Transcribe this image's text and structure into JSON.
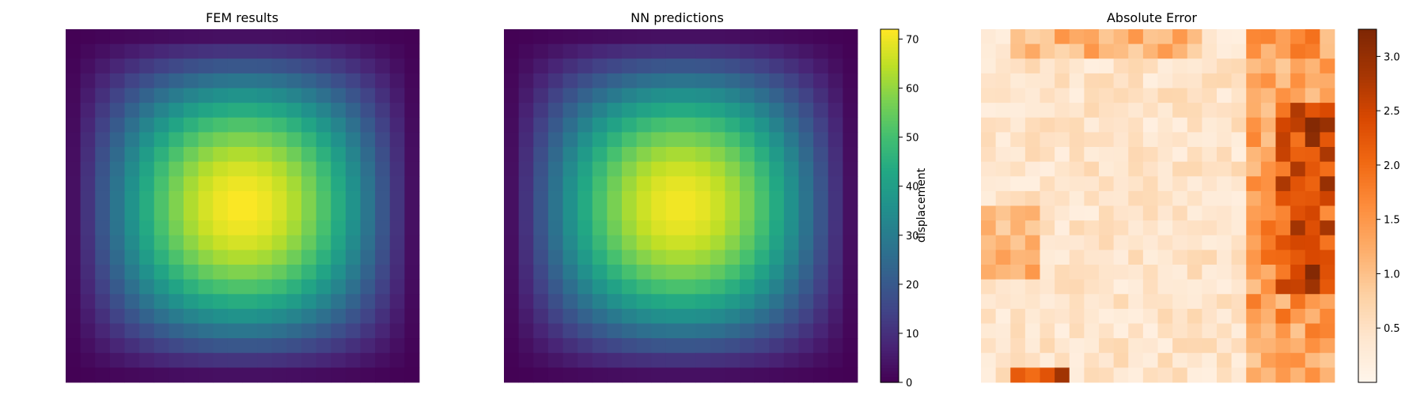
{
  "chart_data": [
    {
      "type": "heatmap",
      "title": "FEM results",
      "grid_size": [
        24,
        24
      ],
      "colormap": "viridis",
      "value_range": [
        0,
        72
      ],
      "field": "displacement",
      "peak": {
        "value": 72,
        "row": 12,
        "col": 12
      },
      "axes_visible": false
    },
    {
      "type": "heatmap",
      "title": "NN predictions",
      "grid_size": [
        24,
        24
      ],
      "colormap": "viridis",
      "value_range": [
        0,
        72
      ],
      "field": "displacement",
      "peak": {
        "value": 71,
        "row": 12,
        "col": 12
      },
      "axes_visible": false,
      "colorbar": {
        "label": "displacement",
        "ticks": [
          0,
          10,
          20,
          30,
          40,
          50,
          60,
          70
        ],
        "range": [
          0,
          72
        ]
      }
    },
    {
      "type": "heatmap",
      "title": "Absolute Error",
      "grid_size": [
        24,
        24
      ],
      "colormap": "Oranges",
      "value_range": [
        0,
        3.25
      ],
      "axes_visible": false,
      "colorbar": {
        "label": "",
        "ticks": [
          0.5,
          1.0,
          1.5,
          2.0,
          2.5,
          3.0
        ],
        "tick_labels": [
          "0.5",
          "1.0",
          "1.5",
          "2.0",
          "2.5",
          "3.0"
        ],
        "range": [
          0,
          3.25
        ]
      },
      "high_error_regions": [
        {
          "row": 6,
          "col": 22,
          "value": 3.2
        },
        {
          "row": 7,
          "col": 22,
          "value": 3.1
        },
        {
          "row": 10,
          "col": 23,
          "value": 3.0
        },
        {
          "row": 16,
          "col": 22,
          "value": 3.2
        },
        {
          "row": 23,
          "col": 5,
          "value": 2.9
        }
      ]
    }
  ]
}
